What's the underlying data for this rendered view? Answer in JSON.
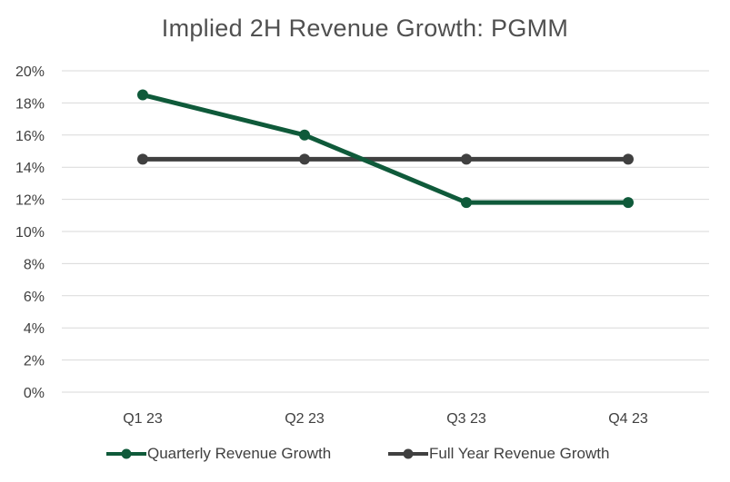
{
  "chart_data": {
    "type": "line",
    "title": "Implied 2H Revenue Growth: PGMM",
    "categories": [
      "Q1 23",
      "Q2 23",
      "Q3 23",
      "Q4 23"
    ],
    "series": [
      {
        "name": "Quarterly Revenue Growth",
        "values": [
          18.5,
          16.0,
          11.8,
          11.8
        ],
        "color": "#0f5a3a"
      },
      {
        "name": "Full Year Revenue Growth",
        "values": [
          14.5,
          14.5,
          14.5,
          14.5
        ],
        "color": "#404040"
      }
    ],
    "ylim": [
      0,
      20
    ],
    "yticks": [
      0,
      2,
      4,
      6,
      8,
      10,
      12,
      14,
      16,
      18,
      20
    ],
    "ytick_labels": [
      "0%",
      "2%",
      "4%",
      "6%",
      "8%",
      "10%",
      "12%",
      "14%",
      "16%",
      "18%",
      "20%"
    ],
    "xlabel": "",
    "ylabel": "",
    "grid": true,
    "legend_position": "bottom",
    "gridline_color": "#d9d9d9"
  }
}
